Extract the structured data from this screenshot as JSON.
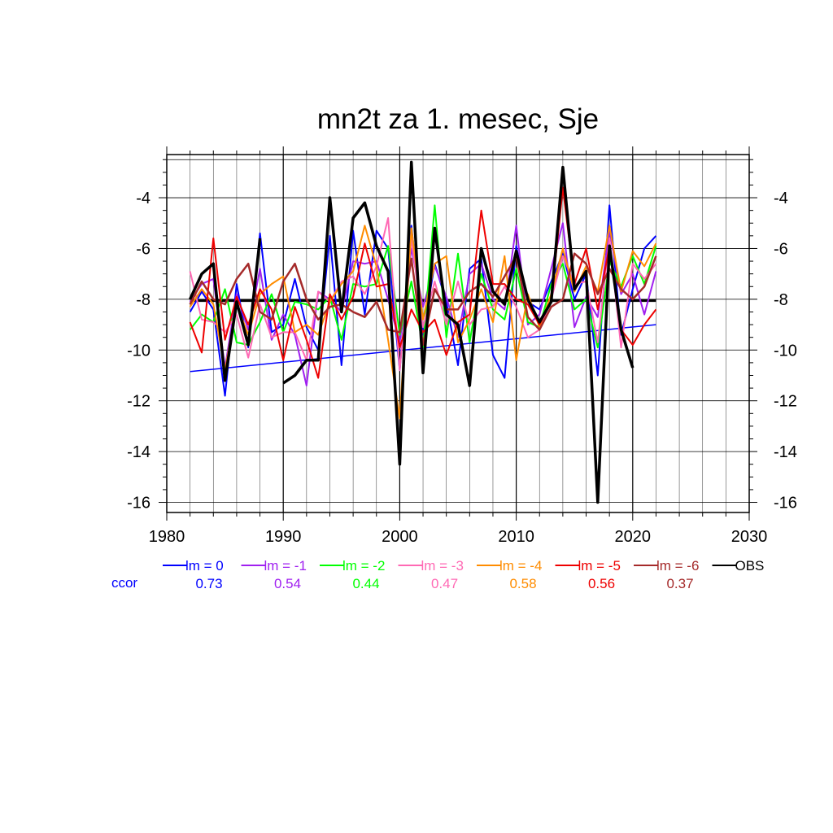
{
  "chart_data": {
    "type": "line",
    "title": "mn2t za 1. mesec, Sje",
    "xlabel": "",
    "ylabel": "",
    "xlim": [
      1980,
      2030
    ],
    "ylim": [
      -16.4,
      -2.3
    ],
    "x_ticks": [
      1980,
      1990,
      2000,
      2010,
      2020,
      2030
    ],
    "y_ticks": [
      -4,
      -6,
      -8,
      -10,
      -12,
      -14,
      -16
    ],
    "y_tick_labels": [
      "-4",
      "-6",
      "-8",
      "-10",
      "-12",
      "-14",
      "-16"
    ],
    "grid": true,
    "x": [
      1982,
      1983,
      1984,
      1985,
      1986,
      1987,
      1988,
      1989,
      1990,
      1991,
      1992,
      1993,
      1994,
      1995,
      1996,
      1997,
      1998,
      1999,
      2000,
      2001,
      2002,
      2003,
      2004,
      2005,
      2006,
      2007,
      2008,
      2009,
      2010,
      2011,
      2012,
      2013,
      2014,
      2015,
      2016,
      2017,
      2018,
      2019,
      2020,
      2021,
      2022
    ],
    "series": [
      {
        "name": "lm = 0",
        "color": "#0000ff",
        "width": 2,
        "values": [
          -8.5,
          -7.7,
          -8.4,
          -11.8,
          -7.4,
          -9.9,
          -5.4,
          -9.3,
          -9.0,
          -7.2,
          -9.1,
          -10.0,
          -5.5,
          -10.6,
          -5.3,
          -8.6,
          -5.3,
          -6.0,
          -10.8,
          -5.1,
          -9.4,
          -6.6,
          -8.1,
          -10.6,
          -6.8,
          -6.4,
          -10.2,
          -11.1,
          -5.9,
          -8.1,
          -8.4,
          -7.3,
          -6.2,
          -8.0,
          -7.0,
          -11.0,
          -4.3,
          -9.4,
          -7.6,
          -6.0,
          -5.5
        ]
      },
      {
        "name": "lm = -1",
        "color": "#a020f0",
        "width": 2,
        "values": [
          -8.1,
          -7.4,
          -7.2,
          -10.7,
          -7.8,
          -9.2,
          -6.8,
          -9.6,
          -8.6,
          -9.4,
          -11.4,
          -7.7,
          -8.0,
          -8.5,
          -6.5,
          -6.6,
          -6.5,
          -8.0,
          -9.7,
          -6.0,
          -8.3,
          -6.7,
          -7.9,
          -9.5,
          -7.0,
          -6.6,
          -8.0,
          -8.4,
          -5.1,
          -9.0,
          -8.6,
          -6.8,
          -5.0,
          -9.1,
          -7.9,
          -8.7,
          -5.3,
          -7.8,
          -7.0,
          -8.6,
          -6.9
        ]
      },
      {
        "name": "lm = -2",
        "color": "#00ff00",
        "width": 2,
        "values": [
          -9.2,
          -8.6,
          -8.9,
          -7.6,
          -9.7,
          -9.8,
          -8.9,
          -7.8,
          -9.3,
          -8.1,
          -8.2,
          -8.4,
          -7.9,
          -9.6,
          -7.4,
          -7.5,
          -7.4,
          -5.9,
          -9.4,
          -7.3,
          -9.9,
          -4.3,
          -9.5,
          -6.2,
          -9.7,
          -7.0,
          -8.4,
          -8.8,
          -6.8,
          -8.9,
          -9.1,
          -7.4,
          -6.6,
          -8.4,
          -8.0,
          -9.9,
          -6.5,
          -7.5,
          -6.3,
          -7.4,
          -5.9
        ]
      },
      {
        "name": "lm = -3",
        "color": "#ff69b4",
        "width": 2,
        "values": [
          -6.9,
          -8.8,
          -8.9,
          -9.3,
          -8.6,
          -10.3,
          -8.2,
          -9.5,
          -9.3,
          -9.3,
          -10.4,
          -7.7,
          -8.1,
          -7.3,
          -7.1,
          -7.8,
          -6.7,
          -4.8,
          -10.8,
          -5.6,
          -9.1,
          -7.3,
          -9.0,
          -7.3,
          -9.0,
          -8.4,
          -8.3,
          -7.5,
          -8.3,
          -9.5,
          -9.2,
          -8.0,
          -6.3,
          -7.4,
          -7.3,
          -9.7,
          -5.6,
          -9.9,
          -6.6,
          -7.2,
          -6.6
        ]
      },
      {
        "name": "lm = -4",
        "color": "#ff8c00",
        "width": 2,
        "values": [
          -8.3,
          -7.6,
          -8.2,
          -10.8,
          -8.2,
          -9.4,
          -7.8,
          -7.4,
          -7.1,
          -9.3,
          -9.0,
          -9.4,
          -8.1,
          -7.4,
          -6.9,
          -5.1,
          -6.7,
          -9.6,
          -12.7,
          -5.2,
          -8.8,
          -6.6,
          -6.3,
          -9.7,
          -8.8,
          -7.6,
          -8.9,
          -6.3,
          -10.4,
          -7.8,
          -9.1,
          -7.8,
          -6.0,
          -7.7,
          -6.7,
          -7.7,
          -5.1,
          -7.7,
          -6.1,
          -6.7,
          -5.8
        ]
      },
      {
        "name": "lm = -5",
        "color": "#ee0000",
        "width": 2,
        "values": [
          -8.9,
          -10.1,
          -5.6,
          -9.6,
          -7.9,
          -9.0,
          -7.6,
          -8.4,
          -10.4,
          -8.3,
          -9.6,
          -11.1,
          -7.8,
          -8.8,
          -7.9,
          -5.8,
          -7.5,
          -7.4,
          -9.9,
          -8.4,
          -9.3,
          -8.8,
          -10.2,
          -8.9,
          -8.6,
          -4.5,
          -7.4,
          -7.4,
          -8.0,
          -8.2,
          -9.0,
          -8.1,
          -3.6,
          -7.4,
          -6.0,
          -8.4,
          -5.9,
          -9.2,
          -9.8,
          -9.0,
          -8.4
        ]
      },
      {
        "name": "lm = -6",
        "color": "#a52a2a",
        "width": 2.5,
        "values": [
          -8.2,
          -7.3,
          -8.0,
          -8.2,
          -7.2,
          -6.6,
          -8.5,
          -8.8,
          -7.3,
          -6.6,
          -8.0,
          -8.8,
          -8.3,
          -8.2,
          -8.5,
          -8.7,
          -8.1,
          -9.2,
          -9.3,
          -6.4,
          -9.8,
          -7.6,
          -8.4,
          -8.4,
          -7.7,
          -7.4,
          -7.9,
          -7.1,
          -6.3,
          -8.7,
          -9.2,
          -8.3,
          -8.0,
          -6.2,
          -6.6,
          -7.8,
          -6.8,
          -7.6,
          -8.0,
          -7.5,
          -6.3
        ]
      },
      {
        "name": "OBS",
        "color": "#000000",
        "width": 3.5,
        "values": [
          -8.0,
          -7.0,
          -6.6,
          -11.2,
          -8.1,
          -9.8,
          -5.6,
          null,
          -11.3,
          -11.0,
          -10.4,
          -10.4,
          -4.0,
          -8.5,
          -4.8,
          -4.2,
          -5.9,
          -6.9,
          -14.5,
          -2.6,
          -10.9,
          -5.2,
          -8.6,
          -9.0,
          -11.4,
          -6.0,
          -7.7,
          -8.2,
          -6.1,
          -8.0,
          -8.9,
          -8.1,
          -2.8,
          -7.6,
          -6.9,
          -16.0,
          -5.9,
          -9.2,
          -10.7,
          null,
          null
        ]
      }
    ],
    "reference_lines": [
      {
        "label": "OBS mean",
        "color": "#000000",
        "width": 3.5,
        "x": [
          1982,
          2022
        ],
        "y": [
          -8.05,
          -8.05
        ]
      },
      {
        "label": "trend",
        "color": "#0000ff",
        "width": 1.5,
        "x": [
          1982,
          2022
        ],
        "y": [
          -10.85,
          -9.0
        ]
      }
    ],
    "legend": {
      "placement": "bottom",
      "ccor_label": "ccor",
      "ccor_color": "#0000ff",
      "entries": [
        {
          "label": "lm = 0",
          "color": "#0000ff",
          "ccor": "0.73"
        },
        {
          "label": "lm = -1",
          "color": "#a020f0",
          "ccor": "0.54"
        },
        {
          "label": "lm = -2",
          "color": "#00ff00",
          "ccor": "0.44"
        },
        {
          "label": "lm = -3",
          "color": "#ff69b4",
          "ccor": "0.47"
        },
        {
          "label": "lm = -4",
          "color": "#ff8c00",
          "ccor": "0.58"
        },
        {
          "label": "lm = -5",
          "color": "#ee0000",
          "ccor": "0.56"
        },
        {
          "label": "lm = -6",
          "color": "#a52a2a",
          "ccor": "0.37"
        },
        {
          "label": "OBS",
          "color": "#000000",
          "ccor": ""
        }
      ]
    }
  }
}
